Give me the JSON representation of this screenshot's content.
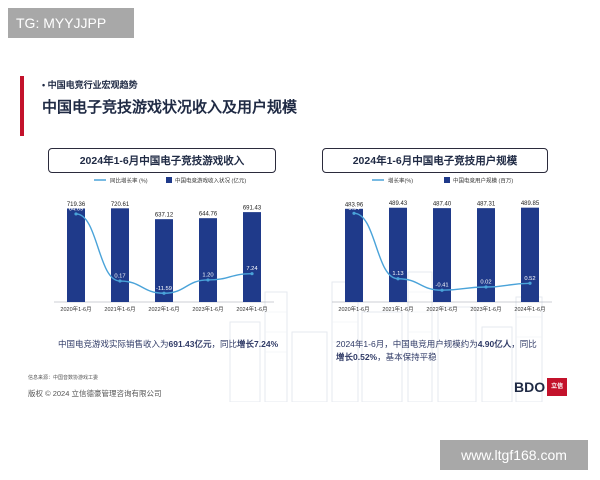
{
  "watermark_top": "TG: MYYJJPP",
  "watermark_bottom": "www.ltgf168.com",
  "section_label": "• 中国电竞行业宏观趋势",
  "page_title": "中国电子竞技游戏状况收入及用户规模",
  "source_note": "信息来源：中国音数协游戏工委",
  "copyright": "版权 © 2024 立信德豪管理咨询有限公司",
  "logo": {
    "text": "BDO",
    "mark": "立信"
  },
  "colors": {
    "bar": "#1f3a8a",
    "line": "#4aa3d9",
    "accent": "#c3122b",
    "text": "#1f2a44"
  },
  "chart_data": [
    {
      "type": "bar",
      "title": "2024年1-6月中国电子竞技游戏收入",
      "categories": [
        "2020年1-6月",
        "2021年1-6月",
        "2022年1-6月",
        "2023年1-6月",
        "2024年1-6月"
      ],
      "series": [
        {
          "name": "中国电竞游戏收入状况 (亿元)",
          "type": "bar",
          "values": [
            719.36,
            720.61,
            637.12,
            644.76,
            691.43
          ]
        },
        {
          "name": "同比增长率 (%)",
          "type": "line",
          "values": [
            64.69,
            0.17,
            -11.59,
            1.2,
            7.24
          ]
        }
      ],
      "bar_labels": [
        "719.36",
        "720.61",
        "637.12",
        "644.76",
        "691.43"
      ],
      "line_labels": [
        "64.69",
        "0.17",
        "-11.59",
        "1.20",
        "7.24"
      ],
      "bar_range": [
        0,
        800
      ],
      "line_range": [
        -20,
        80
      ],
      "legend_position": "top",
      "caption_plain": "中国电竞游戏实际销售收入为",
      "caption_bold1": "691.43亿元",
      "caption_mid": "，同比",
      "caption_bold2": "增长7.24%"
    },
    {
      "type": "bar",
      "title": "2024年1-6月中国电子竞技用户规模",
      "categories": [
        "2020年1-6月",
        "2021年1-6月",
        "2022年1-6月",
        "2023年1-6月",
        "2024年1-6月"
      ],
      "series": [
        {
          "name": "中国电竞用户规模 (百万)",
          "type": "bar",
          "values": [
            483.96,
            489.43,
            487.4,
            487.31,
            489.85
          ]
        },
        {
          "name": "增长率(%)",
          "type": "line",
          "values": [
            9.94,
            1.13,
            -0.41,
            0.02,
            0.52
          ]
        }
      ],
      "bar_labels": [
        "483.96",
        "489.43",
        "487.40",
        "487.31",
        "489.85"
      ],
      "line_labels": [
        "9.94",
        "1.13",
        "-0.41",
        "0.02",
        "0.52"
      ],
      "bar_range": [
        0,
        540
      ],
      "line_range": [
        -2,
        12
      ],
      "legend_position": "top",
      "caption_line1": "2024年1-6月，中国电竞用户规模约为",
      "caption_bold1": "4.90亿人",
      "caption_mid": "，同比",
      "caption_bold2": "增长0.52%",
      "caption_tail": "，基本保持平稳"
    }
  ]
}
